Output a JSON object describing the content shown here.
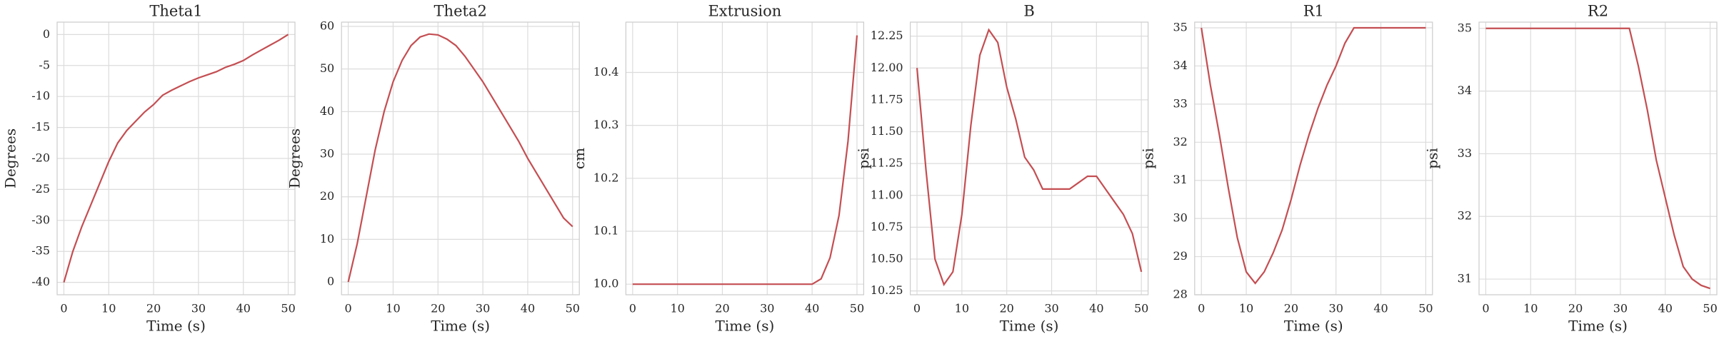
{
  "chart_data": [
    {
      "type": "line",
      "title": "Theta1",
      "x_label": "Time (s)",
      "y_label": "Degrees",
      "x": [
        0,
        2,
        4,
        6,
        8,
        10,
        12,
        14,
        16,
        18,
        20,
        22,
        24,
        26,
        28,
        30,
        32,
        34,
        36,
        38,
        40,
        42,
        44,
        46,
        48,
        50
      ],
      "series": [
        {
          "color": "#c44e52",
          "values": [
            -40,
            -35,
            -31,
            -27.5,
            -24,
            -20.5,
            -17.5,
            -15.5,
            -14,
            -12.5,
            -11.3,
            -9.8,
            -9,
            -8.3,
            -7.6,
            -7,
            -6.5,
            -6,
            -5.3,
            -4.8,
            -4.2,
            -3.3,
            -2.5,
            -1.7,
            -0.9,
            0
          ]
        }
      ],
      "xlim": [
        -1.5,
        51.5
      ],
      "xticks": [
        0,
        10,
        20,
        30,
        40,
        50
      ],
      "ylim": [
        -42,
        2
      ],
      "yticks": [
        -40,
        -35,
        -30,
        -25,
        -20,
        -15,
        -10,
        -5,
        0
      ],
      "grid": true
    },
    {
      "type": "line",
      "title": "Theta2",
      "x_label": "Time (s)",
      "y_label": "Degrees",
      "x": [
        0,
        2,
        4,
        6,
        8,
        10,
        12,
        14,
        16,
        18,
        20,
        22,
        24,
        26,
        28,
        30,
        32,
        34,
        36,
        38,
        40,
        42,
        44,
        46,
        48,
        50
      ],
      "series": [
        {
          "color": "#c44e52",
          "values": [
            0,
            9,
            20,
            31,
            40,
            47,
            52,
            55.5,
            57.5,
            58.2,
            58,
            57,
            55.5,
            53,
            50,
            47,
            43.5,
            40,
            36.5,
            33,
            29,
            25.5,
            22,
            18.5,
            15,
            13
          ]
        }
      ],
      "xlim": [
        -1.5,
        51.5
      ],
      "xticks": [
        0,
        10,
        20,
        30,
        40,
        50
      ],
      "ylim": [
        -3,
        61
      ],
      "yticks": [
        0,
        10,
        20,
        30,
        40,
        50,
        60
      ],
      "grid": true
    },
    {
      "type": "line",
      "title": "Extrusion",
      "x_label": "Time (s)",
      "y_label": "cm",
      "x": [
        0,
        2,
        4,
        6,
        8,
        10,
        12,
        14,
        16,
        18,
        20,
        22,
        24,
        26,
        28,
        30,
        32,
        34,
        36,
        38,
        40,
        42,
        44,
        46,
        48,
        50
      ],
      "series": [
        {
          "color": "#c44e52",
          "values": [
            10,
            10,
            10,
            10,
            10,
            10,
            10,
            10,
            10,
            10,
            10,
            10,
            10,
            10,
            10,
            10,
            10,
            10,
            10,
            10,
            10,
            10.01,
            10.05,
            10.13,
            10.27,
            10.47
          ]
        }
      ],
      "xlim": [
        -1.5,
        51.5
      ],
      "xticks": [
        0,
        10,
        20,
        30,
        40,
        50
      ],
      "ylim": [
        9.98,
        10.495
      ],
      "yticks": [
        {
          "value": 10,
          "label": "10.0"
        },
        10.1,
        10.2,
        10.3,
        10.4
      ],
      "grid": true
    },
    {
      "type": "line",
      "title": "B",
      "x_label": "Time (s)",
      "y_label": "psi",
      "x": [
        0,
        2,
        4,
        6,
        8,
        10,
        12,
        14,
        16,
        18,
        20,
        22,
        24,
        26,
        28,
        30,
        32,
        34,
        36,
        38,
        40,
        42,
        44,
        46,
        48,
        50
      ],
      "series": [
        {
          "color": "#c44e52",
          "values": [
            12,
            11.2,
            10.5,
            10.3,
            10.4,
            10.85,
            11.55,
            12.1,
            12.3,
            12.2,
            11.85,
            11.6,
            11.3,
            11.2,
            11.05,
            11.05,
            11.05,
            11.05,
            11.1,
            11.15,
            11.15,
            11.05,
            10.95,
            10.85,
            10.7,
            10.4
          ]
        }
      ],
      "xlim": [
        -1.5,
        51.5
      ],
      "xticks": [
        0,
        10,
        20,
        30,
        40,
        50
      ],
      "ylim": [
        10.22,
        12.36
      ],
      "yticks": [
        10.25,
        {
          "value": 10.5,
          "label": "10.50"
        },
        10.75,
        {
          "value": 11,
          "label": "11.00"
        },
        11.25,
        {
          "value": 11.5,
          "label": "11.50"
        },
        11.75,
        {
          "value": 12,
          "label": "12.00"
        },
        12.25
      ],
      "grid": true
    },
    {
      "type": "line",
      "title": "R1",
      "x_label": "Time (s)",
      "y_label": "psi",
      "x": [
        0,
        2,
        4,
        6,
        8,
        10,
        12,
        14,
        16,
        18,
        20,
        22,
        24,
        26,
        28,
        30,
        32,
        34,
        36,
        38,
        40,
        42,
        44,
        46,
        48,
        50
      ],
      "series": [
        {
          "color": "#c44e52",
          "values": [
            35,
            33.5,
            32.2,
            30.8,
            29.5,
            28.6,
            28.3,
            28.6,
            29.1,
            29.7,
            30.5,
            31.4,
            32.2,
            32.9,
            33.5,
            34,
            34.6,
            35,
            35,
            35,
            35,
            35,
            35,
            35,
            35,
            35
          ]
        }
      ],
      "xlim": [
        -1.5,
        51.5
      ],
      "xticks": [
        0,
        10,
        20,
        30,
        40,
        50
      ],
      "ylim": [
        28,
        35.15
      ],
      "yticks": [
        28,
        29,
        30,
        31,
        32,
        33,
        34,
        35
      ],
      "grid": true
    },
    {
      "type": "line",
      "title": "R2",
      "x_label": "Time (s)",
      "y_label": "psi",
      "x": [
        0,
        2,
        4,
        6,
        8,
        10,
        12,
        14,
        16,
        18,
        20,
        22,
        24,
        26,
        28,
        30,
        32,
        34,
        36,
        38,
        40,
        42,
        44,
        46,
        48,
        50
      ],
      "series": [
        {
          "color": "#c44e52",
          "values": [
            35,
            35,
            35,
            35,
            35,
            35,
            35,
            35,
            35,
            35,
            35,
            35,
            35,
            35,
            35,
            35,
            35,
            34.4,
            33.7,
            32.9,
            32.3,
            31.7,
            31.2,
            31,
            30.9,
            30.85
          ]
        }
      ],
      "xlim": [
        -1.5,
        51.5
      ],
      "xticks": [
        0,
        10,
        20,
        30,
        40,
        50
      ],
      "ylim": [
        30.75,
        35.1
      ],
      "yticks": [
        31,
        32,
        33,
        34,
        35
      ],
      "grid": true
    }
  ]
}
